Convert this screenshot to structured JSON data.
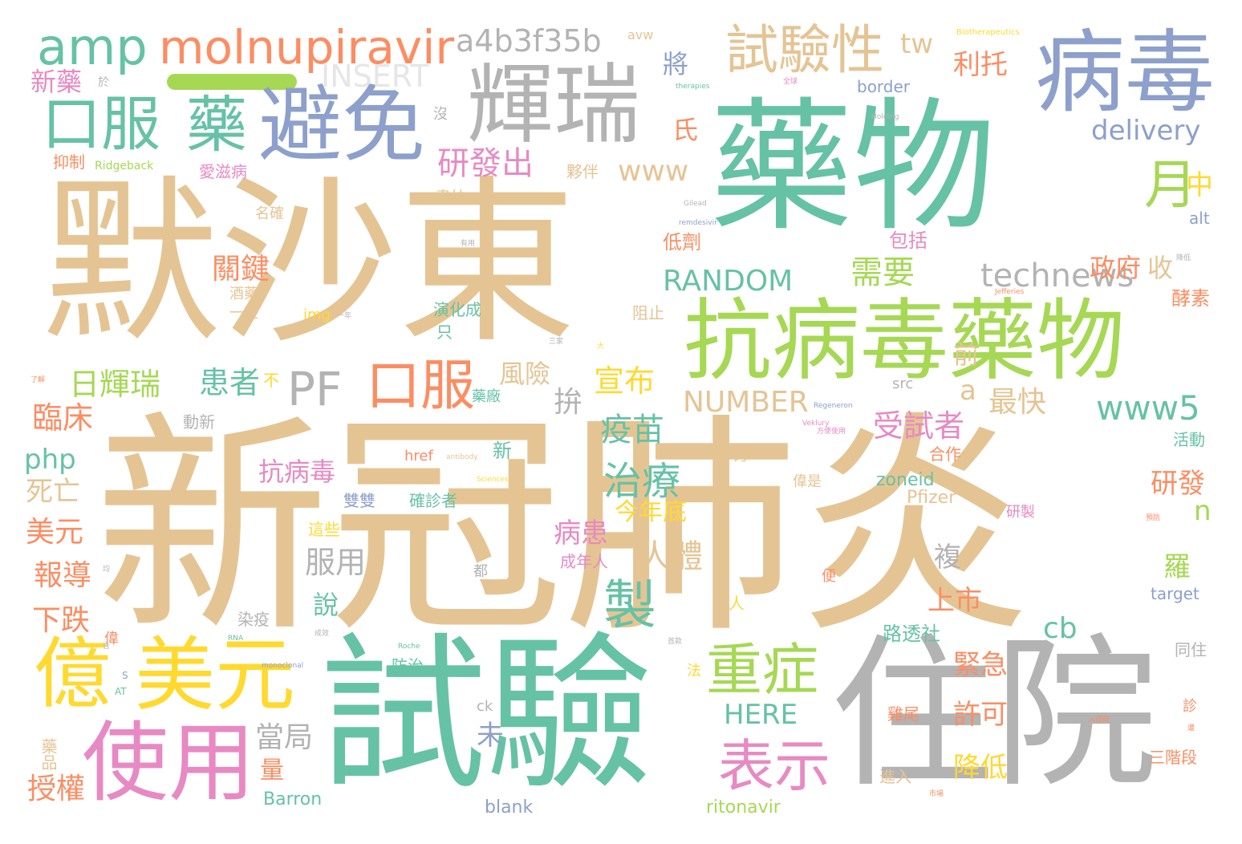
{
  "colors": {
    "tan": "#e5c494",
    "green": "#66c2a5",
    "lime": "#a6d854",
    "blue": "#8da0cb",
    "orange": "#fc8d62",
    "pink": "#e78ac3",
    "yellow": "#ffd92f",
    "gray": "#b3b3b3"
  },
  "words": [
    {
      "text": "默沙東"
    },
    {
      "text": "新冠肺炎"
    },
    {
      "text": "藥物"
    },
    {
      "text": "試驗"
    },
    {
      "text": "住院"
    },
    {
      "text": "抗病毒藥物"
    },
    {
      "text": "病毒"
    },
    {
      "text": "輝瑞"
    },
    {
      "text": "避免"
    },
    {
      "text": "口服"
    },
    {
      "text": "藥"
    },
    {
      "text": "使用"
    },
    {
      "text": "美元"
    },
    {
      "text": "億"
    },
    {
      "text": "amp"
    },
    {
      "text": "molnupiravir"
    },
    {
      "text": "a4b3f35b"
    },
    {
      "text": "試驗性"
    },
    {
      "text": "tw"
    },
    {
      "text": "月"
    },
    {
      "text": "重症"
    },
    {
      "text": "表示"
    },
    {
      "text": "製"
    },
    {
      "text": "治療"
    },
    {
      "text": "PF"
    },
    {
      "text": "口服"
    },
    {
      "text": "INSERT"
    },
    {
      "text": "technews"
    },
    {
      "text": "RANDOM"
    },
    {
      "text": "NUMBER"
    },
    {
      "text": "www5"
    },
    {
      "text": "delivery"
    },
    {
      "text": "www"
    },
    {
      "text": "研發出"
    },
    {
      "text": "日輝瑞"
    },
    {
      "text": "患者"
    },
    {
      "text": "疫苗"
    },
    {
      "text": "需要"
    },
    {
      "text": "宣布"
    },
    {
      "text": "關鍵"
    },
    {
      "text": "人體"
    },
    {
      "text": "受試者"
    },
    {
      "text": "抗病毒"
    },
    {
      "text": "服用"
    },
    {
      "text": "HERE"
    },
    {
      "text": "當局"
    },
    {
      "text": "php"
    },
    {
      "text": "cb"
    },
    {
      "text": "新藥"
    },
    {
      "text": "利托"
    },
    {
      "text": "將"
    },
    {
      "text": "氏"
    },
    {
      "text": "政府"
    },
    {
      "text": "收"
    },
    {
      "text": "中"
    },
    {
      "text": "拚"
    },
    {
      "text": "a"
    },
    {
      "text": "最快"
    },
    {
      "text": "風險"
    },
    {
      "text": "前"
    },
    {
      "text": "臨床"
    },
    {
      "text": "死亡"
    },
    {
      "text": "美元"
    },
    {
      "text": "報導"
    },
    {
      "text": "下跌"
    },
    {
      "text": "授權"
    },
    {
      "text": "病患"
    },
    {
      "text": "今年底"
    },
    {
      "text": "複"
    },
    {
      "text": "上市"
    },
    {
      "text": "緊急"
    },
    {
      "text": "許可"
    },
    {
      "text": "降低"
    },
    {
      "text": "研發"
    },
    {
      "text": "n"
    },
    {
      "text": "羅"
    },
    {
      "text": "未"
    },
    {
      "text": "量"
    },
    {
      "text": "說"
    },
    {
      "text": "低劑"
    },
    {
      "text": "包括"
    },
    {
      "text": "酵素"
    },
    {
      "text": "路透社"
    },
    {
      "text": "zoneid"
    },
    {
      "text": "Pfizer"
    },
    {
      "text": "ritonavir"
    },
    {
      "text": "Barron"
    },
    {
      "text": "blank"
    },
    {
      "text": "target"
    },
    {
      "text": "alt"
    },
    {
      "text": "border"
    },
    {
      "text": "src"
    },
    {
      "text": "href"
    },
    {
      "text": "img"
    },
    {
      "text": "ck"
    },
    {
      "text": "avw"
    },
    {
      "text": "Ridgeback"
    },
    {
      "text": "Biotherapeutics"
    },
    {
      "text": "三階段"
    },
    {
      "text": "同住"
    },
    {
      "text": "活動"
    },
    {
      "text": "研製"
    },
    {
      "text": "演化成"
    },
    {
      "text": "阻止"
    },
    {
      "text": "雙雙"
    },
    {
      "text": "確診者"
    },
    {
      "text": "成年人"
    },
    {
      "text": "偉是"
    },
    {
      "text": "合作"
    },
    {
      "text": "動新"
    },
    {
      "text": "防治"
    },
    {
      "text": "進入"
    },
    {
      "text": "雞尾"
    },
    {
      "text": "新"
    },
    {
      "text": "愛滋病"
    },
    {
      "text": "盡快"
    },
    {
      "text": "夥伴"
    },
    {
      "text": "抑制"
    },
    {
      "text": "名確"
    },
    {
      "text": "酒藥"
    },
    {
      "text": "一室"
    },
    {
      "text": "染疫"
    },
    {
      "text": "藥品"
    },
    {
      "text": "力"
    },
    {
      "text": "法"
    },
    {
      "text": "都"
    },
    {
      "text": "沒"
    },
    {
      "text": "只"
    },
    {
      "text": "不"
    },
    {
      "text": "人"
    },
    {
      "text": "便"
    },
    {
      "text": "診"
    },
    {
      "text": "偉"
    },
    {
      "text": "藥廠"
    },
    {
      "text": "這些"
    },
    {
      "text": "於"
    },
    {
      "text": "therapies"
    },
    {
      "text": "Holding"
    },
    {
      "text": "Gilead"
    },
    {
      "text": "remdesivir"
    },
    {
      "text": "Jefferies"
    },
    {
      "text": "Regeneron"
    },
    {
      "text": "Veklury"
    },
    {
      "text": "antibody"
    },
    {
      "text": "Sciences"
    },
    {
      "text": "Roche"
    },
    {
      "text": "monoclonal"
    },
    {
      "text": "RNA"
    },
    {
      "text": "AT"
    },
    {
      "text": "S"
    },
    {
      "text": "入侵時"
    },
    {
      "text": "預防"
    },
    {
      "text": "方便使用"
    },
    {
      "text": "市場"
    },
    {
      "text": "首款"
    },
    {
      "text": "三家"
    },
    {
      "text": "大"
    },
    {
      "text": "有用"
    },
    {
      "text": "含"
    },
    {
      "text": "了解"
    },
    {
      "text": "一年"
    },
    {
      "text": "均"
    },
    {
      "text": "全球"
    },
    {
      "text": "成效"
    },
    {
      "text": "降低"
    },
    {
      "text": "遭"
    }
  ]
}
